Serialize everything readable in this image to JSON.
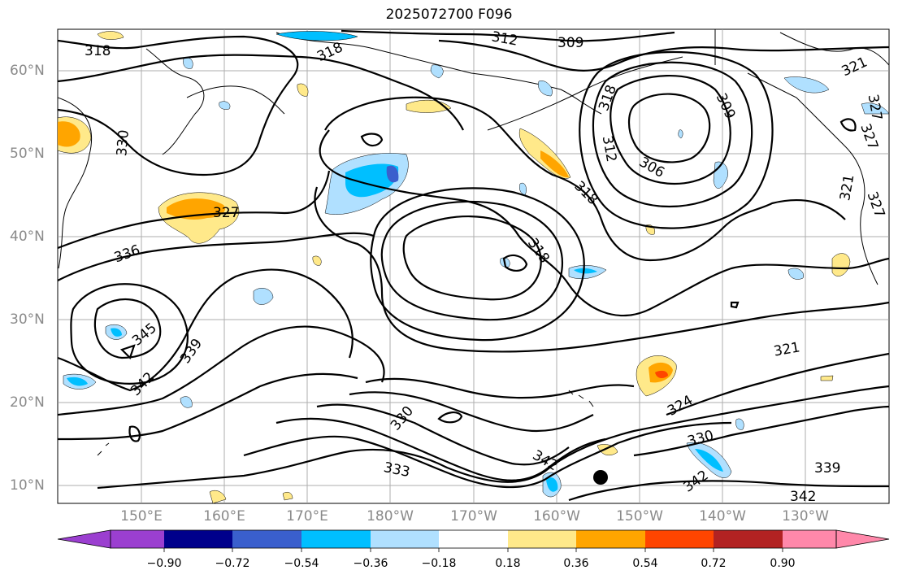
{
  "title": "2025072700 F096",
  "lat_labels": [
    "60°N",
    "50°N",
    "40°N",
    "30°N",
    "20°N",
    "10°N"
  ],
  "lon_labels": [
    "150°E",
    "160°E",
    "170°E",
    "180°W",
    "170°W",
    "160°W",
    "150°W",
    "140°W",
    "130°W"
  ],
  "contour_labels": [
    "318",
    "318",
    "312",
    "309",
    "321",
    "327",
    "327",
    "321",
    "327",
    "330",
    "327",
    "336",
    "345",
    "339",
    "342",
    "318",
    "318",
    "309",
    "312",
    "306",
    "318",
    "321",
    "324",
    "330",
    "330",
    "333",
    "342",
    "342",
    "339",
    "342"
  ],
  "colorbar": {
    "ticks": [
      "−0.90",
      "−0.72",
      "−0.54",
      "−0.36",
      "−0.18",
      "0.18",
      "0.36",
      "0.54",
      "0.72",
      "0.90"
    ],
    "colors": [
      "#9b3fd0",
      "#00008b",
      "#3a5fcd",
      "#00bfff",
      "#b0e0ff",
      "#ffffff",
      "#ffe98a",
      "#ffa500",
      "#ff4500",
      "#b22222",
      "#ff88aa"
    ]
  }
}
